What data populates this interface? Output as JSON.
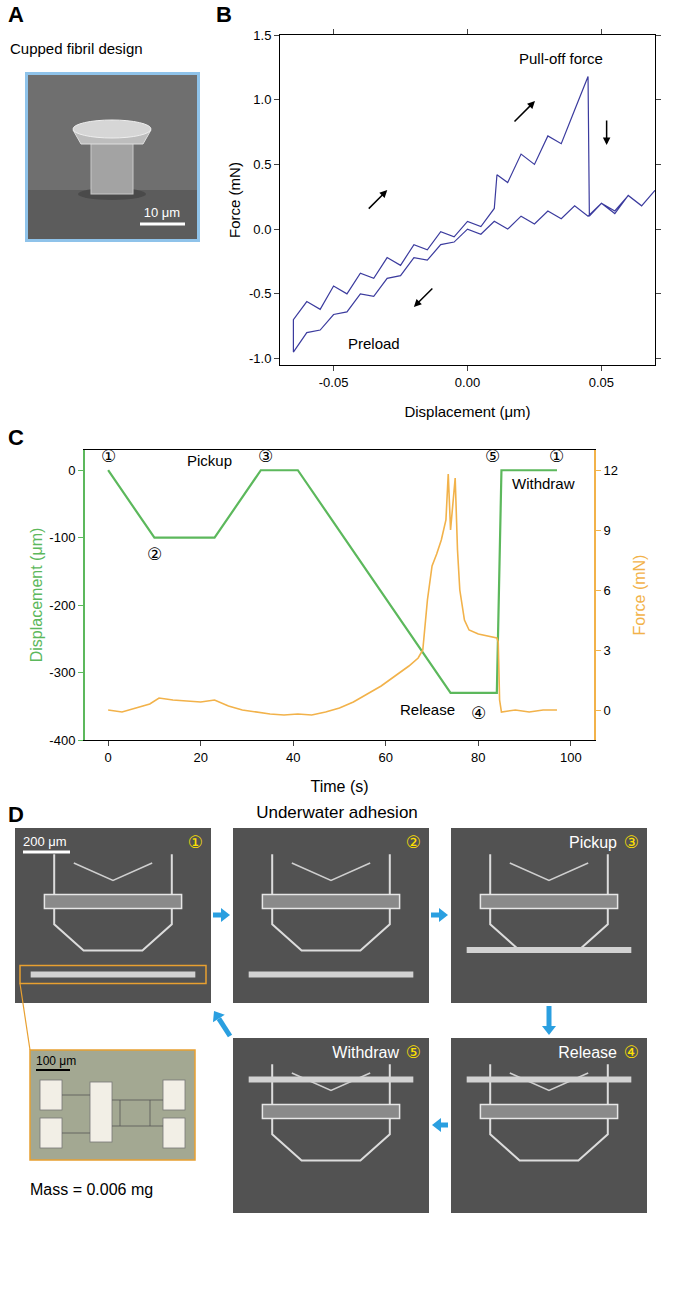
{
  "chart_data": [
    {
      "panel": "B",
      "type": "line",
      "x_label": "Displacement (μm)",
      "y_label": "Force (mN)",
      "color": "#3b3b9e",
      "x": [
        0.07,
        0.065,
        0.06,
        0.055,
        0.05,
        0.045,
        0.04,
        0.035,
        0.03,
        0.025,
        0.02,
        0.015,
        0.01,
        0.005,
        0,
        -0.005,
        -0.01,
        -0.015,
        -0.02,
        -0.025,
        -0.03,
        -0.035,
        -0.04,
        -0.045,
        -0.05,
        -0.055,
        -0.06,
        -0.065,
        -0.065,
        -0.06,
        -0.055,
        -0.05,
        -0.045,
        -0.04,
        -0.035,
        -0.03,
        -0.025,
        -0.02,
        -0.015,
        -0.01,
        -0.005,
        0,
        0.005,
        0.01,
        0.011,
        0.015,
        0.02,
        0.025,
        0.03,
        0.035,
        0.04,
        0.045,
        0.0455,
        0.05,
        0.055,
        0.06,
        0.065,
        0.07
      ],
      "values": [
        0.3,
        0.18,
        0.26,
        0.14,
        0.2,
        0.1,
        0.18,
        0.08,
        0.14,
        0.04,
        0.1,
        0.0,
        0.06,
        -0.04,
        0.0,
        -0.1,
        -0.12,
        -0.24,
        -0.22,
        -0.36,
        -0.38,
        -0.52,
        -0.5,
        -0.64,
        -0.66,
        -0.78,
        -0.8,
        -0.95,
        -0.7,
        -0.56,
        -0.62,
        -0.44,
        -0.5,
        -0.34,
        -0.38,
        -0.22,
        -0.28,
        -0.12,
        -0.16,
        -0.02,
        -0.06,
        0.06,
        0.02,
        0.16,
        0.42,
        0.36,
        0.58,
        0.5,
        0.72,
        0.66,
        0.92,
        1.18,
        0.1,
        0.2,
        0.12,
        0.26,
        0.18,
        0.3
      ],
      "xlim": [
        -0.07,
        0.07
      ],
      "xticks": [
        -0.05,
        {
          "value": 0,
          "label": "0.00"
        },
        0.05
      ],
      "ylim": [
        -1.05,
        1.5
      ],
      "yticks": [
        {
          "value": -1,
          "label": "-1.0"
        },
        {
          "value": -0.5,
          "label": "-0.5"
        },
        {
          "value": 0,
          "label": "0.0"
        },
        {
          "value": 0.5,
          "label": "0.5"
        },
        {
          "value": 1,
          "label": "1.0"
        },
        {
          "value": 1.5,
          "label": "1.5"
        }
      ],
      "grid": false,
      "annotations": [
        {
          "text": "Pull-off force",
          "x": 0.035,
          "y": 1.32
        },
        {
          "text": "Preload",
          "x": -0.035,
          "y": -0.88
        }
      ]
    },
    {
      "panel": "C",
      "type": "line",
      "x_label": "Time (s)",
      "y_label": "Displacement (μm)",
      "y2_label": "Force (mN)",
      "xlim": [
        -5,
        105
      ],
      "xticks": [
        0,
        20,
        40,
        60,
        80,
        100
      ],
      "ylim": [
        -400,
        30
      ],
      "yticks": [
        -400,
        -300,
        -200,
        -100,
        0
      ],
      "y2lim": [
        -1.5,
        13
      ],
      "y2ticks": [
        0,
        3,
        6,
        9,
        12
      ],
      "grid": false,
      "series": [
        {
          "axis": "y",
          "color": "#5cb85c",
          "x": [
            0,
            10,
            23,
            33,
            41,
            74,
            84,
            85,
            97
          ],
          "values": [
            0,
            -100,
            -100,
            0,
            0,
            -330,
            -330,
            0,
            0
          ]
        },
        {
          "axis": "y2",
          "color": "#f2b24a",
          "x": [
            0,
            3,
            6,
            9,
            11,
            14,
            17,
            20,
            23,
            26,
            29,
            32,
            35,
            38,
            41,
            44,
            47,
            50,
            53,
            56,
            59,
            62,
            65,
            67,
            68,
            69,
            70,
            71,
            72,
            73,
            73.5,
            74,
            74.5,
            75,
            75.5,
            76,
            77,
            78,
            80,
            82,
            84,
            84.3,
            84.6,
            85,
            88,
            91,
            94,
            97
          ],
          "values": [
            0,
            -0.1,
            0.1,
            0.3,
            0.6,
            0.5,
            0.45,
            0.4,
            0.5,
            0.2,
            0,
            -0.1,
            -0.2,
            -0.25,
            -0.2,
            -0.25,
            -0.1,
            0.1,
            0.4,
            0.8,
            1.2,
            1.7,
            2.2,
            2.6,
            3.0,
            5.5,
            7.2,
            7.8,
            8.5,
            9.5,
            11.8,
            9.0,
            10.5,
            11.6,
            8.0,
            6.0,
            4.5,
            4.0,
            3.8,
            3.7,
            3.6,
            3.4,
            0.5,
            -0.1,
            0,
            -0.1,
            0,
            0
          ]
        }
      ],
      "annotations": [
        {
          "text": "①",
          "x": 0,
          "y": 20
        },
        {
          "text": "②",
          "x": 10,
          "y": -125
        },
        {
          "text": "Pickup",
          "x": 22,
          "y": 15
        },
        {
          "text": "③",
          "x": 34,
          "y": 20
        },
        {
          "text": "Release",
          "x": 69,
          "y": -355
        },
        {
          "text": "④",
          "x": 80,
          "y": -360
        },
        {
          "text": "⑤",
          "x": 83,
          "y": 20
        },
        {
          "text": "Withdraw",
          "x": 94,
          "y": -20
        },
        {
          "text": "①",
          "x": 97,
          "y": 20
        }
      ]
    }
  ],
  "figure": {
    "A": {
      "letter": "A",
      "title": "Cupped fibril design",
      "scale_bar": "10 μm"
    },
    "D": {
      "letter": "D",
      "title": "Underwater adhesion",
      "scale_bar": "200 μm",
      "frames": [
        {
          "step": "①"
        },
        {
          "step": "②"
        },
        {
          "step": "③",
          "label": "Pickup"
        },
        {
          "step": "④",
          "label": "Release"
        },
        {
          "step": "⑤",
          "label": "Withdraw"
        }
      ],
      "inset": {
        "scale_bar": "100 μm",
        "caption": "Mass = 0.006 mg"
      }
    }
  }
}
